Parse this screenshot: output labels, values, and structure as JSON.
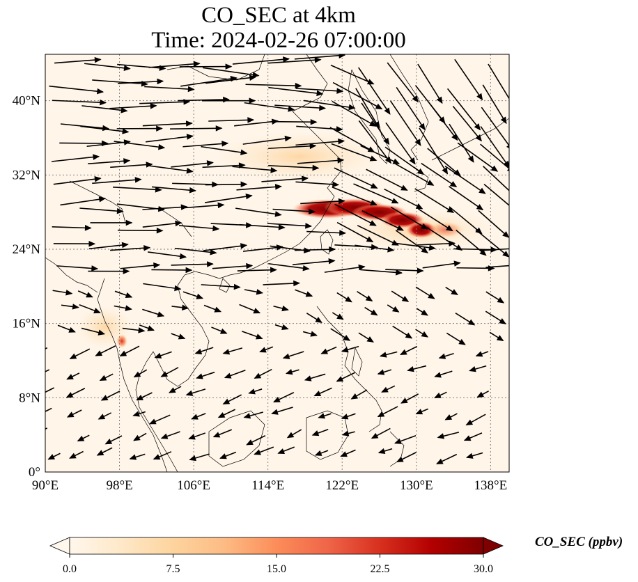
{
  "title": {
    "line1": "CO_SEC at 4km",
    "line2": "Time: 2024-02-26 07:00:00"
  },
  "map": {
    "extent": {
      "lon": [
        90,
        140
      ],
      "lat": [
        0,
        45
      ]
    },
    "lon_ticks": [
      {
        "value": 90,
        "label": "90°E"
      },
      {
        "value": 98,
        "label": "98°E"
      },
      {
        "value": 106,
        "label": "106°E"
      },
      {
        "value": 114,
        "label": "114°E"
      },
      {
        "value": 122,
        "label": "122°E"
      },
      {
        "value": 130,
        "label": "130°E"
      },
      {
        "value": 138,
        "label": "138°E"
      }
    ],
    "lat_ticks": [
      {
        "value": 0,
        "label": "0°"
      },
      {
        "value": 8,
        "label": "8°N"
      },
      {
        "value": 16,
        "label": "16°N"
      },
      {
        "value": 24,
        "label": "24°N"
      },
      {
        "value": 32,
        "label": "32°N"
      },
      {
        "value": 40,
        "label": "40°N"
      }
    ],
    "gridlines": true,
    "field_variable": "CO_SEC",
    "vectors": "wind arrows"
  },
  "colorbar": {
    "label": "CO_SEC (ppbv)",
    "ticks": [
      "0.0",
      "7.5",
      "15.0",
      "22.5",
      "30.0"
    ],
    "range": [
      0,
      30
    ],
    "extend": "both",
    "colormap": "OrRd",
    "stops": [
      "#fff7ec",
      "#fee8c8",
      "#fdd49e",
      "#fdbb84",
      "#fc8d59",
      "#ef6548",
      "#d7301f",
      "#b30000",
      "#7f0000"
    ]
  },
  "colors": {
    "background_field": "#fff5e8",
    "coastline": "#000000",
    "gridline": "#808080"
  }
}
